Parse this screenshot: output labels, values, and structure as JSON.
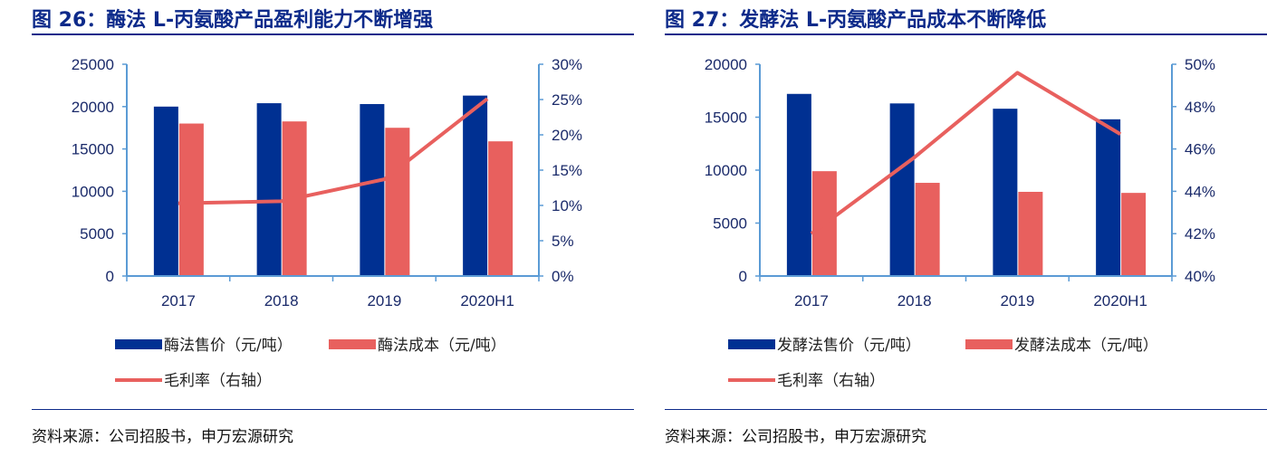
{
  "chart_data": [
    {
      "type": "bar",
      "title": "图 26：酶法 L-丙氨酸产品盈利能力不断增强",
      "categories": [
        "2017",
        "2018",
        "2019",
        "2020H1"
      ],
      "series": [
        {
          "name": "酶法售价（元/吨）",
          "type": "bar",
          "axis": "left",
          "color": "#003092",
          "values": [
            20000,
            20400,
            20300,
            21300
          ]
        },
        {
          "name": "酶法成本（元/吨）",
          "type": "bar",
          "axis": "left",
          "color": "#e8605e",
          "values": [
            18000,
            18250,
            17500,
            15900
          ]
        },
        {
          "name": "毛利率（右轴）",
          "type": "line",
          "axis": "right",
          "color": "#e8605e",
          "values": [
            10.3,
            10.6,
            13.7,
            25.1
          ]
        }
      ],
      "ylim": [
        0,
        25000
      ],
      "yticks": [
        "0",
        "5000",
        "10000",
        "15000",
        "20000",
        "25000"
      ],
      "y2lim": [
        0,
        30
      ],
      "y2ticks": [
        "0%",
        "5%",
        "10%",
        "15%",
        "20%",
        "25%",
        "30%"
      ],
      "source": "资料来源：公司招股书，申万宏源研究",
      "legend": "bottom"
    },
    {
      "type": "bar",
      "title": "图 27：发酵法 L-丙氨酸产品成本不断降低",
      "categories": [
        "2017",
        "2018",
        "2019",
        "2020H1"
      ],
      "series": [
        {
          "name": "发酵法售价（元/吨）",
          "type": "bar",
          "axis": "left",
          "color": "#003092",
          "values": [
            17200,
            16300,
            15800,
            14800
          ]
        },
        {
          "name": "发酵法成本（元/吨）",
          "type": "bar",
          "axis": "left",
          "color": "#e8605e",
          "values": [
            9900,
            8800,
            7950,
            7850
          ]
        },
        {
          "name": "毛利率（右轴）",
          "type": "line",
          "axis": "right",
          "color": "#e8605e",
          "values": [
            42.0,
            45.6,
            49.6,
            46.7
          ]
        }
      ],
      "ylim": [
        0,
        20000
      ],
      "yticks": [
        "0",
        "5000",
        "10000",
        "15000",
        "20000"
      ],
      "y2lim": [
        40,
        50
      ],
      "y2ticks": [
        "40%",
        "42%",
        "44%",
        "46%",
        "48%",
        "50%"
      ],
      "source": "资料来源：公司招股书，申万宏源研究",
      "legend": "bottom"
    }
  ]
}
